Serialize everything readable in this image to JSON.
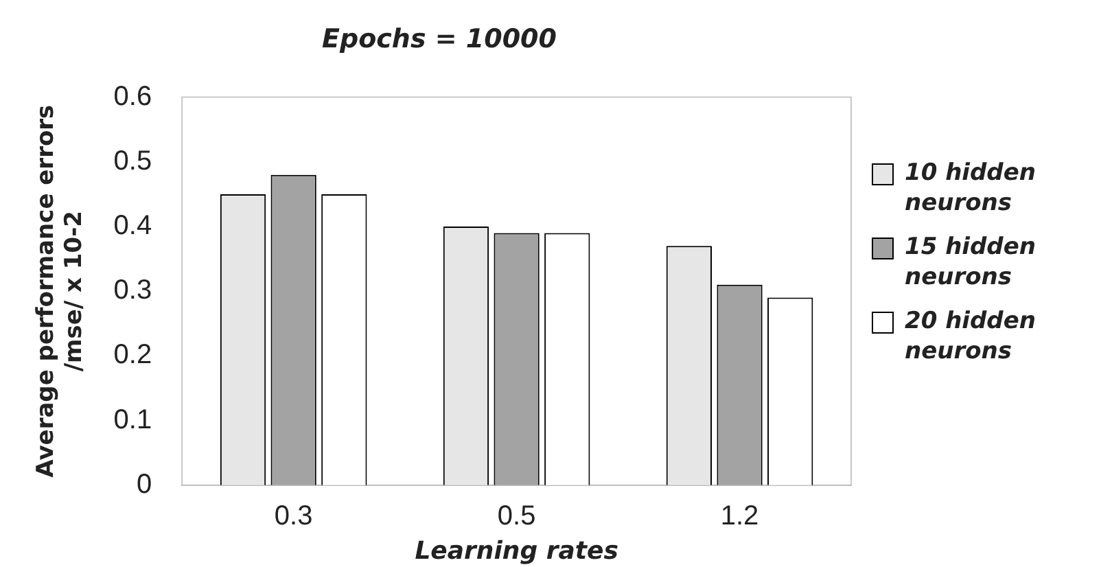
{
  "chart_data": {
    "type": "bar",
    "title": "Epochs = 10000",
    "xlabel": "Learning rates",
    "ylabel": "Average performance errors /mse/ x 10-2",
    "categories": [
      "0.3",
      "0.5",
      "1.2"
    ],
    "series": [
      {
        "name": "10 hidden neurons",
        "color": "#e6e6e6",
        "values": [
          0.45,
          0.4,
          0.37
        ]
      },
      {
        "name": "15 hidden neurons",
        "color": "#a3a3a3",
        "values": [
          0.48,
          0.39,
          0.31
        ]
      },
      {
        "name": "20 hidden neurons",
        "color": "#ffffff",
        "values": [
          0.45,
          0.39,
          0.29
        ]
      }
    ],
    "ylim": [
      0,
      0.6
    ],
    "yticks": [
      0,
      0.1,
      0.2,
      0.3,
      0.4,
      0.5,
      0.6
    ],
    "grid": false,
    "legend": "right"
  }
}
